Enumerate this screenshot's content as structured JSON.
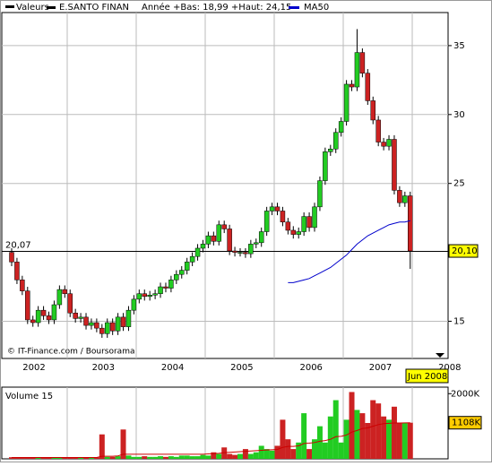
{
  "chart_data": {
    "type": "candlestick",
    "legend_label": "Valeurs",
    "title": "E.SANTO FINAN",
    "subtitle": "Année +Bas: 18,99 +Haut: 24,15",
    "ma_name": "MA50",
    "ma_color": "#0000cc",
    "up_color": "#22cc22",
    "down_color": "#cc2222",
    "credit": "© IT-Finance.com / Boursorama",
    "last_date": "Jun 2008",
    "years": [
      "2002",
      "2003",
      "2004",
      "2005",
      "2006",
      "2007",
      "2008"
    ],
    "ylim": [
      12.3,
      37.4
    ],
    "yticks": [
      15,
      25,
      30,
      35
    ],
    "grid": true,
    "reference": {
      "value": 20.07,
      "label": "20,07"
    },
    "last_price": {
      "value": 20.1,
      "label": "20,10"
    },
    "open": [
      20.0,
      19.3,
      18.0,
      17.2,
      15.1,
      14.9,
      15.8,
      15.4,
      15.1,
      16.2,
      17.3,
      17.0,
      15.6,
      15.2,
      15.3,
      14.7,
      14.9,
      14.5,
      14.1,
      14.9,
      14.3,
      15.3,
      14.6,
      15.8,
      16.6,
      17.0,
      16.8,
      16.9,
      17.0,
      17.5,
      17.4,
      18.0,
      18.4,
      18.7,
      19.3,
      19.7,
      20.3,
      20.6,
      21.2,
      20.8,
      22.0,
      21.7,
      20.1,
      20.0,
      20.0,
      19.9,
      20.6,
      20.7,
      21.5,
      23.0,
      23.3,
      23.0,
      22.2,
      21.6,
      21.3,
      21.5,
      22.6,
      21.8,
      23.3,
      25.2,
      27.3,
      27.5,
      28.7,
      29.5,
      32.2,
      32.0,
      34.5,
      33.0,
      31.0,
      29.6,
      28.0,
      27.7,
      28.2,
      24.5,
      23.6,
      24.1
    ],
    "high": [
      20.3,
      19.6,
      18.3,
      17.5,
      15.4,
      16.1,
      16.1,
      15.7,
      16.5,
      17.6,
      17.6,
      17.3,
      15.9,
      15.6,
      15.6,
      15.2,
      15.2,
      14.8,
      15.2,
      15.2,
      15.6,
      15.6,
      16.1,
      16.9,
      17.3,
      17.3,
      17.2,
      17.3,
      17.8,
      17.8,
      18.3,
      18.7,
      19.0,
      19.6,
      20.0,
      20.6,
      20.9,
      21.5,
      21.5,
      22.3,
      22.3,
      22.0,
      20.4,
      20.3,
      20.3,
      20.9,
      21.0,
      21.8,
      23.3,
      23.6,
      23.6,
      23.3,
      22.5,
      21.9,
      21.8,
      22.9,
      22.9,
      23.6,
      25.5,
      27.6,
      27.8,
      29.0,
      29.8,
      32.5,
      32.5,
      36.2,
      34.8,
      33.3,
      31.3,
      29.9,
      28.3,
      28.5,
      28.5,
      24.8,
      24.4,
      24.4
    ],
    "low": [
      19.0,
      17.7,
      16.9,
      14.8,
      14.6,
      14.6,
      15.1,
      14.8,
      14.8,
      15.9,
      16.7,
      15.3,
      14.9,
      14.9,
      14.4,
      14.4,
      14.2,
      13.8,
      13.8,
      14.0,
      14.0,
      14.3,
      14.3,
      15.5,
      16.3,
      16.5,
      16.5,
      16.6,
      16.7,
      17.1,
      17.1,
      17.7,
      18.1,
      18.4,
      19.0,
      19.4,
      20.0,
      20.3,
      20.5,
      20.5,
      21.4,
      19.8,
      19.7,
      19.7,
      19.6,
      19.6,
      20.3,
      20.4,
      21.2,
      22.7,
      22.7,
      21.9,
      21.3,
      21.0,
      21.0,
      21.2,
      21.5,
      21.5,
      23.0,
      24.9,
      27.0,
      27.2,
      28.4,
      29.2,
      31.7,
      31.7,
      32.7,
      30.7,
      29.3,
      27.7,
      27.4,
      27.4,
      24.2,
      23.3,
      23.3,
      18.8
    ],
    "close": [
      19.3,
      18.0,
      17.2,
      15.1,
      14.9,
      15.8,
      15.4,
      15.1,
      16.2,
      17.3,
      17.0,
      15.6,
      15.2,
      15.3,
      14.7,
      14.9,
      14.5,
      14.1,
      14.9,
      14.3,
      15.3,
      14.6,
      15.8,
      16.6,
      17.0,
      16.8,
      16.9,
      17.0,
      17.5,
      17.4,
      18.0,
      18.4,
      18.7,
      19.3,
      19.7,
      20.3,
      20.6,
      21.2,
      20.8,
      22.0,
      21.7,
      20.1,
      20.0,
      20.0,
      19.9,
      20.6,
      20.7,
      21.5,
      23.0,
      23.3,
      23.0,
      22.2,
      21.6,
      21.3,
      21.5,
      22.6,
      21.8,
      23.3,
      25.2,
      27.3,
      27.5,
      28.7,
      29.5,
      32.2,
      32.0,
      34.5,
      33.0,
      31.0,
      29.6,
      28.0,
      27.7,
      28.2,
      24.5,
      23.6,
      24.1,
      20.1
    ],
    "ma": [
      null,
      null,
      null,
      null,
      null,
      null,
      null,
      null,
      null,
      null,
      null,
      null,
      null,
      null,
      null,
      null,
      null,
      null,
      null,
      null,
      null,
      null,
      null,
      null,
      null,
      null,
      null,
      null,
      null,
      null,
      null,
      null,
      null,
      null,
      null,
      null,
      null,
      null,
      null,
      null,
      null,
      null,
      null,
      null,
      null,
      null,
      null,
      null,
      null,
      null,
      null,
      null,
      17.8,
      17.8,
      17.9,
      18.0,
      18.1,
      18.3,
      18.5,
      18.7,
      18.9,
      19.2,
      19.5,
      19.8,
      20.2,
      20.6,
      20.9,
      21.2,
      21.4,
      21.6,
      21.8,
      22.0,
      22.1,
      22.2,
      22.2,
      22.3
    ],
    "volume_label": "Volume 15",
    "volume_ma_color": "#cc0000",
    "volume": [
      50,
      40,
      30,
      30,
      30,
      40,
      30,
      30,
      40,
      50,
      40,
      40,
      40,
      40,
      50,
      40,
      40,
      750,
      60,
      60,
      80,
      900,
      100,
      60,
      60,
      80,
      60,
      60,
      80,
      60,
      80,
      60,
      100,
      100,
      80,
      80,
      120,
      100,
      200,
      150,
      350,
      150,
      120,
      150,
      300,
      150,
      200,
      400,
      300,
      250,
      400,
      1200,
      600,
      300,
      500,
      1400,
      300,
      600,
      1000,
      500,
      1300,
      1800,
      500,
      1200,
      2050,
      1500,
      1400,
      1100,
      1800,
      1700,
      1300,
      1200,
      1600,
      1100,
      1100,
      1108
    ],
    "volume_ma": [
      40,
      40,
      40,
      40,
      40,
      40,
      40,
      40,
      40,
      40,
      40,
      40,
      40,
      40,
      40,
      40,
      40,
      80,
      80,
      80,
      90,
      140,
      140,
      140,
      140,
      140,
      140,
      140,
      140,
      140,
      140,
      140,
      140,
      140,
      140,
      140,
      140,
      150,
      160,
      170,
      190,
      200,
      210,
      220,
      230,
      240,
      250,
      260,
      270,
      280,
      290,
      350,
      380,
      380,
      400,
      470,
      480,
      500,
      540,
      560,
      600,
      680,
      690,
      730,
      820,
      870,
      930,
      950,
      1000,
      1050,
      1080,
      1090,
      1100,
      1100,
      1105,
      1108
    ],
    "volume_ylim": [
      0,
      2200
    ],
    "volume_yticks": [
      {
        "value": 2000,
        "label": "2000K"
      }
    ],
    "volume_last": {
      "value": 1108,
      "label": "1108K"
    }
  }
}
